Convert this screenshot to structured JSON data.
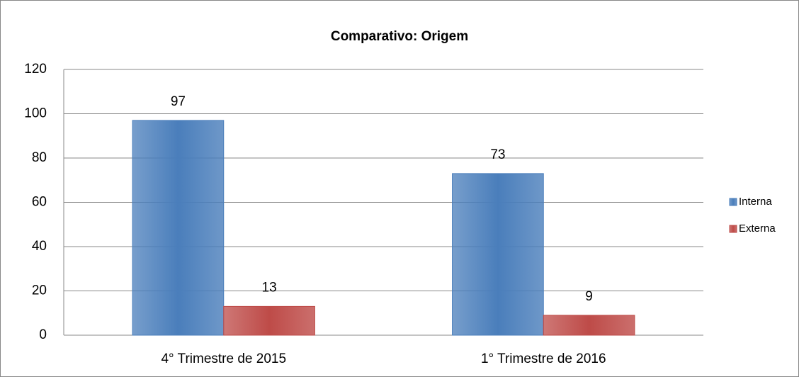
{
  "chart_data": {
    "type": "bar",
    "title": "Comparativo: Origem",
    "categories": [
      "4° Trimestre de 2015",
      "1° Trimestre de 2016"
    ],
    "series": [
      {
        "name": "Interna",
        "color": "#4a7ebb",
        "values": [
          97,
          73
        ]
      },
      {
        "name": "Externa",
        "color": "#be4b48",
        "values": [
          13,
          9
        ]
      }
    ],
    "ylim": [
      0,
      120
    ],
    "yticks": [
      0,
      20,
      40,
      60,
      80,
      100,
      120
    ],
    "grid": true,
    "legend": "right"
  }
}
